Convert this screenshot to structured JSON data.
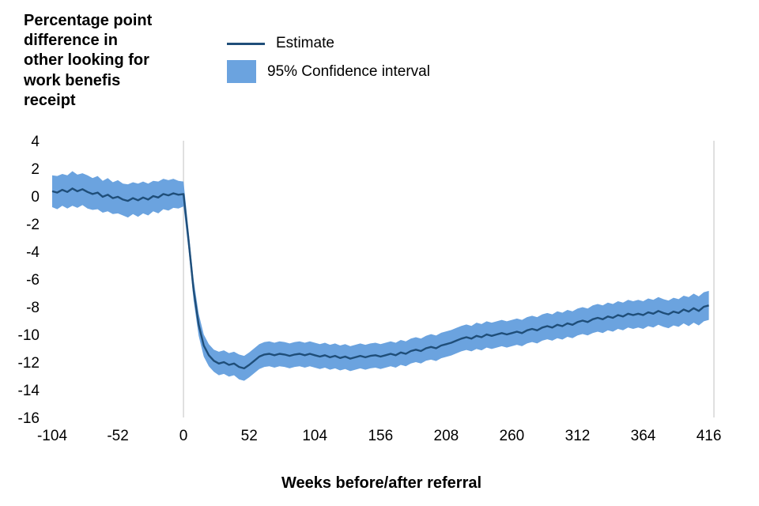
{
  "page": {
    "background": "#ffffff"
  },
  "chart_data": {
    "type": "line",
    "y_axis_label": "Percentage point\ndifference in\nother looking for\nwork benefis\nreceipt",
    "x_axis_title": "Weeks before/after referral",
    "legend": {
      "estimate": "Estimate",
      "ci": "95% Confidence interval"
    },
    "x_ticks": [
      -104,
      -52,
      0,
      52,
      104,
      156,
      208,
      260,
      312,
      364,
      416
    ],
    "y_ticks": [
      4,
      2,
      0,
      -2,
      -4,
      -6,
      -8,
      -10,
      -12,
      -14,
      -16
    ],
    "xlim": [
      -104,
      420
    ],
    "ylim": [
      -16,
      4
    ],
    "grid_x_at": 0,
    "colors": {
      "estimate_line": "#1f4e79",
      "ci_band": "#6ba3df",
      "gridline": "#d0d0d0",
      "text": "#000000"
    },
    "series": {
      "name": "Estimate",
      "ci_name": "95% Confidence interval",
      "points": [
        [
          -104,
          0.35,
          1.15
        ],
        [
          -100,
          0.25,
          1.2
        ],
        [
          -96,
          0.45,
          1.15
        ],
        [
          -92,
          0.3,
          1.2
        ],
        [
          -88,
          0.55,
          1.25
        ],
        [
          -84,
          0.35,
          1.2
        ],
        [
          -80,
          0.5,
          1.15
        ],
        [
          -76,
          0.3,
          1.2
        ],
        [
          -72,
          0.15,
          1.15
        ],
        [
          -68,
          0.25,
          1.2
        ],
        [
          -64,
          -0.05,
          1.15
        ],
        [
          -60,
          0.1,
          1.2
        ],
        [
          -56,
          -0.15,
          1.15
        ],
        [
          -52,
          -0.05,
          1.2
        ],
        [
          -48,
          -0.25,
          1.15
        ],
        [
          -44,
          -0.35,
          1.2
        ],
        [
          -40,
          -0.15,
          1.15
        ],
        [
          -36,
          -0.3,
          1.2
        ],
        [
          -32,
          -0.1,
          1.15
        ],
        [
          -28,
          -0.25,
          1.15
        ],
        [
          -24,
          0.0,
          1.1
        ],
        [
          -20,
          -0.1,
          1.15
        ],
        [
          -16,
          0.15,
          1.1
        ],
        [
          -12,
          0.05,
          1.1
        ],
        [
          -8,
          0.2,
          1.05
        ],
        [
          -4,
          0.1,
          1.0
        ],
        [
          0,
          0.15,
          0.9
        ],
        [
          4,
          -3.2,
          0.7
        ],
        [
          8,
          -6.8,
          0.75
        ],
        [
          12,
          -9.3,
          0.8
        ],
        [
          16,
          -10.8,
          0.8
        ],
        [
          20,
          -11.5,
          0.8
        ],
        [
          24,
          -11.9,
          0.8
        ],
        [
          28,
          -12.1,
          0.85
        ],
        [
          32,
          -12.0,
          0.85
        ],
        [
          36,
          -12.2,
          0.85
        ],
        [
          40,
          -12.1,
          0.85
        ],
        [
          44,
          -12.35,
          0.9
        ],
        [
          48,
          -12.45,
          0.9
        ],
        [
          52,
          -12.2,
          0.9
        ],
        [
          56,
          -11.9,
          0.9
        ],
        [
          60,
          -11.6,
          0.9
        ],
        [
          64,
          -11.45,
          0.9
        ],
        [
          68,
          -11.4,
          0.9
        ],
        [
          72,
          -11.5,
          0.9
        ],
        [
          76,
          -11.4,
          0.9
        ],
        [
          80,
          -11.45,
          0.9
        ],
        [
          84,
          -11.55,
          0.9
        ],
        [
          88,
          -11.45,
          0.9
        ],
        [
          92,
          -11.4,
          0.9
        ],
        [
          96,
          -11.5,
          0.9
        ],
        [
          100,
          -11.4,
          0.9
        ],
        [
          104,
          -11.5,
          0.9
        ],
        [
          108,
          -11.6,
          0.9
        ],
        [
          112,
          -11.5,
          0.9
        ],
        [
          116,
          -11.65,
          0.9
        ],
        [
          120,
          -11.55,
          0.9
        ],
        [
          124,
          -11.7,
          0.9
        ],
        [
          128,
          -11.6,
          0.9
        ],
        [
          132,
          -11.75,
          0.9
        ],
        [
          136,
          -11.65,
          0.9
        ],
        [
          140,
          -11.55,
          0.9
        ],
        [
          144,
          -11.65,
          0.9
        ],
        [
          148,
          -11.55,
          0.9
        ],
        [
          152,
          -11.5,
          0.9
        ],
        [
          156,
          -11.6,
          0.9
        ],
        [
          160,
          -11.5,
          0.9
        ],
        [
          164,
          -11.4,
          0.9
        ],
        [
          168,
          -11.5,
          0.9
        ],
        [
          172,
          -11.3,
          0.9
        ],
        [
          176,
          -11.4,
          0.9
        ],
        [
          180,
          -11.2,
          0.9
        ],
        [
          184,
          -11.1,
          0.9
        ],
        [
          188,
          -11.2,
          0.9
        ],
        [
          192,
          -11.0,
          0.9
        ],
        [
          196,
          -10.9,
          0.92
        ],
        [
          200,
          -11.0,
          0.92
        ],
        [
          204,
          -10.8,
          0.92
        ],
        [
          208,
          -10.7,
          0.92
        ],
        [
          212,
          -10.6,
          0.92
        ],
        [
          216,
          -10.45,
          0.92
        ],
        [
          220,
          -10.3,
          0.92
        ],
        [
          224,
          -10.2,
          0.92
        ],
        [
          228,
          -10.3,
          0.92
        ],
        [
          232,
          -10.1,
          0.95
        ],
        [
          236,
          -10.2,
          0.95
        ],
        [
          240,
          -10.0,
          0.95
        ],
        [
          244,
          -10.1,
          0.95
        ],
        [
          248,
          -10.0,
          0.95
        ],
        [
          252,
          -9.9,
          0.95
        ],
        [
          256,
          -10.0,
          0.95
        ],
        [
          260,
          -9.9,
          0.95
        ],
        [
          264,
          -9.8,
          0.95
        ],
        [
          268,
          -9.9,
          0.95
        ],
        [
          272,
          -9.7,
          0.95
        ],
        [
          276,
          -9.6,
          0.95
        ],
        [
          280,
          -9.7,
          0.95
        ],
        [
          284,
          -9.5,
          0.95
        ],
        [
          288,
          -9.4,
          0.95
        ],
        [
          292,
          -9.5,
          0.95
        ],
        [
          296,
          -9.3,
          0.97
        ],
        [
          300,
          -9.4,
          0.97
        ],
        [
          304,
          -9.2,
          0.97
        ],
        [
          308,
          -9.3,
          0.97
        ],
        [
          312,
          -9.1,
          0.97
        ],
        [
          316,
          -9.0,
          0.97
        ],
        [
          320,
          -9.1,
          0.97
        ],
        [
          324,
          -8.9,
          1.0
        ],
        [
          328,
          -8.8,
          1.0
        ],
        [
          332,
          -8.9,
          1.0
        ],
        [
          336,
          -8.7,
          1.0
        ],
        [
          340,
          -8.8,
          1.0
        ],
        [
          344,
          -8.6,
          1.0
        ],
        [
          348,
          -8.7,
          1.0
        ],
        [
          352,
          -8.5,
          1.0
        ],
        [
          356,
          -8.6,
          1.0
        ],
        [
          360,
          -8.5,
          1.0
        ],
        [
          364,
          -8.6,
          1.0
        ],
        [
          368,
          -8.4,
          1.0
        ],
        [
          372,
          -8.5,
          1.0
        ],
        [
          376,
          -8.3,
          1.0
        ],
        [
          380,
          -8.45,
          1.0
        ],
        [
          384,
          -8.55,
          1.0
        ],
        [
          388,
          -8.35,
          1.0
        ],
        [
          392,
          -8.45,
          1.0
        ],
        [
          396,
          -8.2,
          1.0
        ],
        [
          400,
          -8.35,
          1.05
        ],
        [
          404,
          -8.1,
          1.05
        ],
        [
          408,
          -8.3,
          1.05
        ],
        [
          412,
          -8.0,
          1.05
        ],
        [
          416,
          -7.9,
          1.05
        ]
      ]
    }
  }
}
